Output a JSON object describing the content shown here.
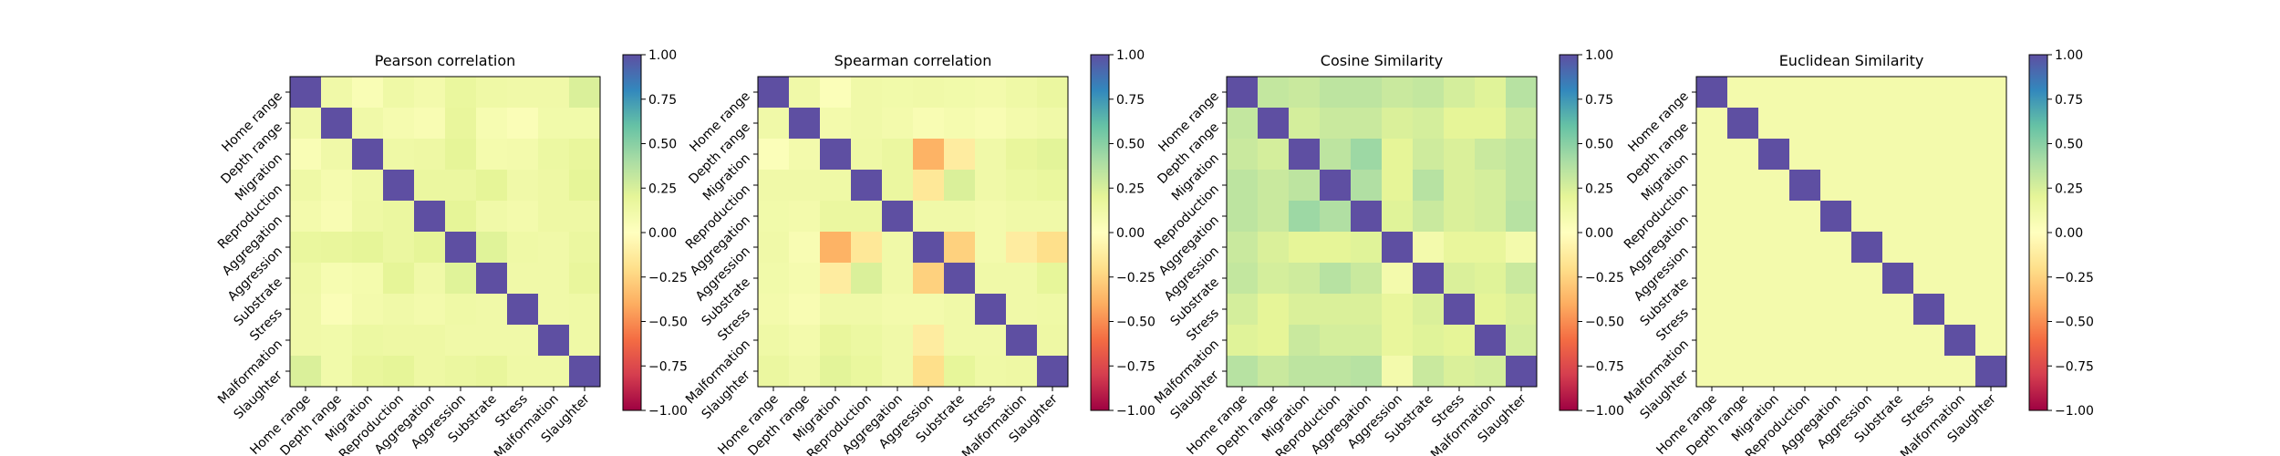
{
  "chart_data": [
    {
      "type": "heatmap",
      "title": "Pearson correlation",
      "categories": [
        "Home range",
        "Depth range",
        "Migration",
        "Reproduction",
        "Aggregation",
        "Aggression",
        "Substrate",
        "Stress",
        "Malformation",
        "Slaughter"
      ],
      "matrix": [
        [
          1.0,
          0.12,
          0.05,
          0.13,
          0.1,
          0.17,
          0.13,
          0.12,
          0.12,
          0.24
        ],
        [
          0.12,
          1.0,
          0.12,
          0.08,
          0.06,
          0.18,
          0.07,
          0.04,
          0.11,
          0.11
        ],
        [
          0.05,
          0.12,
          1.0,
          0.13,
          0.14,
          0.2,
          0.09,
          0.1,
          0.15,
          0.18
        ],
        [
          0.13,
          0.08,
          0.13,
          1.0,
          0.16,
          0.16,
          0.2,
          0.12,
          0.14,
          0.2
        ],
        [
          0.1,
          0.06,
          0.14,
          0.16,
          1.0,
          0.2,
          0.12,
          0.1,
          0.14,
          0.14
        ],
        [
          0.17,
          0.18,
          0.2,
          0.16,
          0.2,
          1.0,
          0.22,
          0.13,
          0.12,
          0.16
        ],
        [
          0.13,
          0.07,
          0.09,
          0.2,
          0.12,
          0.22,
          1.0,
          0.12,
          0.12,
          0.18
        ],
        [
          0.12,
          0.04,
          0.1,
          0.12,
          0.1,
          0.13,
          0.12,
          1.0,
          0.12,
          0.13
        ],
        [
          0.12,
          0.11,
          0.15,
          0.14,
          0.14,
          0.12,
          0.12,
          0.12,
          1.0,
          0.13
        ],
        [
          0.24,
          0.11,
          0.18,
          0.2,
          0.14,
          0.16,
          0.18,
          0.13,
          0.13,
          1.0
        ]
      ],
      "colorbar": {
        "min": -1.0,
        "max": 1.0,
        "ticks": [
          "1.00",
          "0.75",
          "0.50",
          "0.25",
          "0.00",
          "−0.25",
          "−0.50",
          "−0.75",
          "−1.00"
        ]
      }
    },
    {
      "type": "heatmap",
      "title": "Spearman correlation",
      "categories": [
        "Home range",
        "Depth range",
        "Migration",
        "Reproduction",
        "Aggregation",
        "Aggression",
        "Substrate",
        "Stress",
        "Malformation",
        "Slaughter"
      ],
      "matrix": [
        [
          1.0,
          0.12,
          0.03,
          0.12,
          0.11,
          0.12,
          0.11,
          0.1,
          0.13,
          0.16
        ],
        [
          0.12,
          1.0,
          0.1,
          0.12,
          0.1,
          0.06,
          0.08,
          0.06,
          0.1,
          0.12
        ],
        [
          0.03,
          0.1,
          1.0,
          0.13,
          0.16,
          -0.38,
          -0.12,
          0.12,
          0.18,
          0.21
        ],
        [
          0.12,
          0.12,
          0.13,
          1.0,
          0.16,
          -0.15,
          0.24,
          0.12,
          0.15,
          0.17
        ],
        [
          0.11,
          0.1,
          0.16,
          0.16,
          1.0,
          0.12,
          0.12,
          0.1,
          0.12,
          0.12
        ],
        [
          0.12,
          0.06,
          -0.38,
          -0.15,
          0.12,
          1.0,
          -0.26,
          0.1,
          -0.12,
          -0.2
        ],
        [
          0.11,
          0.08,
          -0.12,
          0.24,
          0.12,
          -0.26,
          1.0,
          0.12,
          0.12,
          0.19
        ],
        [
          0.1,
          0.06,
          0.12,
          0.12,
          0.1,
          0.1,
          0.12,
          1.0,
          0.12,
          0.13
        ],
        [
          0.13,
          0.1,
          0.18,
          0.15,
          0.12,
          -0.12,
          0.12,
          0.12,
          1.0,
          0.14
        ],
        [
          0.16,
          0.12,
          0.21,
          0.17,
          0.12,
          -0.2,
          0.19,
          0.13,
          0.14,
          1.0
        ]
      ],
      "colorbar": {
        "min": -1.0,
        "max": 1.0,
        "ticks": [
          "1.00",
          "0.75",
          "0.50",
          "0.25",
          "0.00",
          "−0.25",
          "−0.50",
          "−0.75",
          "−1.00"
        ]
      }
    },
    {
      "type": "heatmap",
      "title": "Cosine Similarity",
      "categories": [
        "Home range",
        "Depth range",
        "Migration",
        "Reproduction",
        "Aggregation",
        "Aggression",
        "Substrate",
        "Stress",
        "Malformation",
        "Slaughter"
      ],
      "matrix": [
        [
          1.0,
          0.32,
          0.3,
          0.34,
          0.34,
          0.3,
          0.32,
          0.26,
          0.22,
          0.36
        ],
        [
          0.32,
          1.0,
          0.26,
          0.3,
          0.3,
          0.24,
          0.26,
          0.2,
          0.2,
          0.3
        ],
        [
          0.3,
          0.26,
          1.0,
          0.34,
          0.44,
          0.2,
          0.28,
          0.24,
          0.3,
          0.34
        ],
        [
          0.34,
          0.3,
          0.34,
          1.0,
          0.38,
          0.2,
          0.36,
          0.24,
          0.26,
          0.34
        ],
        [
          0.34,
          0.3,
          0.44,
          0.38,
          1.0,
          0.22,
          0.3,
          0.24,
          0.26,
          0.36
        ],
        [
          0.3,
          0.24,
          0.2,
          0.2,
          0.22,
          1.0,
          0.1,
          0.18,
          0.18,
          0.1
        ],
        [
          0.32,
          0.26,
          0.28,
          0.36,
          0.3,
          0.1,
          1.0,
          0.24,
          0.22,
          0.3
        ],
        [
          0.26,
          0.2,
          0.24,
          0.24,
          0.24,
          0.18,
          0.24,
          1.0,
          0.2,
          0.24
        ],
        [
          0.22,
          0.2,
          0.3,
          0.26,
          0.26,
          0.18,
          0.22,
          0.2,
          1.0,
          0.26
        ],
        [
          0.36,
          0.3,
          0.34,
          0.34,
          0.36,
          0.1,
          0.3,
          0.24,
          0.26,
          1.0
        ]
      ],
      "colorbar": {
        "min": -1.0,
        "max": 1.0,
        "ticks": [
          "1.00",
          "0.75",
          "0.50",
          "0.25",
          "0.00",
          "−0.25",
          "−0.50",
          "−0.75",
          "−1.00"
        ]
      }
    },
    {
      "type": "heatmap",
      "title": "Euclidean Similarity",
      "categories": [
        "Home range",
        "Depth range",
        "Migration",
        "Reproduction",
        "Aggregation",
        "Aggression",
        "Substrate",
        "Stress",
        "Malformation",
        "Slaughter"
      ],
      "matrix": [
        [
          1.0,
          0.1,
          0.1,
          0.1,
          0.1,
          0.1,
          0.1,
          0.1,
          0.1,
          0.1
        ],
        [
          0.1,
          1.0,
          0.1,
          0.1,
          0.1,
          0.1,
          0.1,
          0.1,
          0.1,
          0.1
        ],
        [
          0.1,
          0.1,
          1.0,
          0.1,
          0.1,
          0.1,
          0.1,
          0.1,
          0.1,
          0.1
        ],
        [
          0.1,
          0.1,
          0.1,
          1.0,
          0.1,
          0.1,
          0.1,
          0.1,
          0.1,
          0.1
        ],
        [
          0.1,
          0.1,
          0.1,
          0.1,
          1.0,
          0.1,
          0.1,
          0.1,
          0.1,
          0.1
        ],
        [
          0.1,
          0.1,
          0.1,
          0.1,
          0.1,
          1.0,
          0.1,
          0.1,
          0.1,
          0.1
        ],
        [
          0.1,
          0.1,
          0.1,
          0.1,
          0.1,
          0.1,
          1.0,
          0.1,
          0.1,
          0.1
        ],
        [
          0.1,
          0.1,
          0.1,
          0.1,
          0.1,
          0.1,
          0.1,
          1.0,
          0.1,
          0.1
        ],
        [
          0.1,
          0.1,
          0.1,
          0.1,
          0.1,
          0.1,
          0.1,
          0.1,
          1.0,
          0.1
        ],
        [
          0.1,
          0.1,
          0.1,
          0.1,
          0.1,
          0.1,
          0.1,
          0.1,
          0.1,
          1.0
        ]
      ],
      "colorbar": {
        "min": -1.0,
        "max": 1.0,
        "ticks": [
          "1.00",
          "0.75",
          "0.50",
          "0.25",
          "0.00",
          "−0.25",
          "−0.50",
          "−0.75",
          "−1.00"
        ]
      }
    }
  ]
}
